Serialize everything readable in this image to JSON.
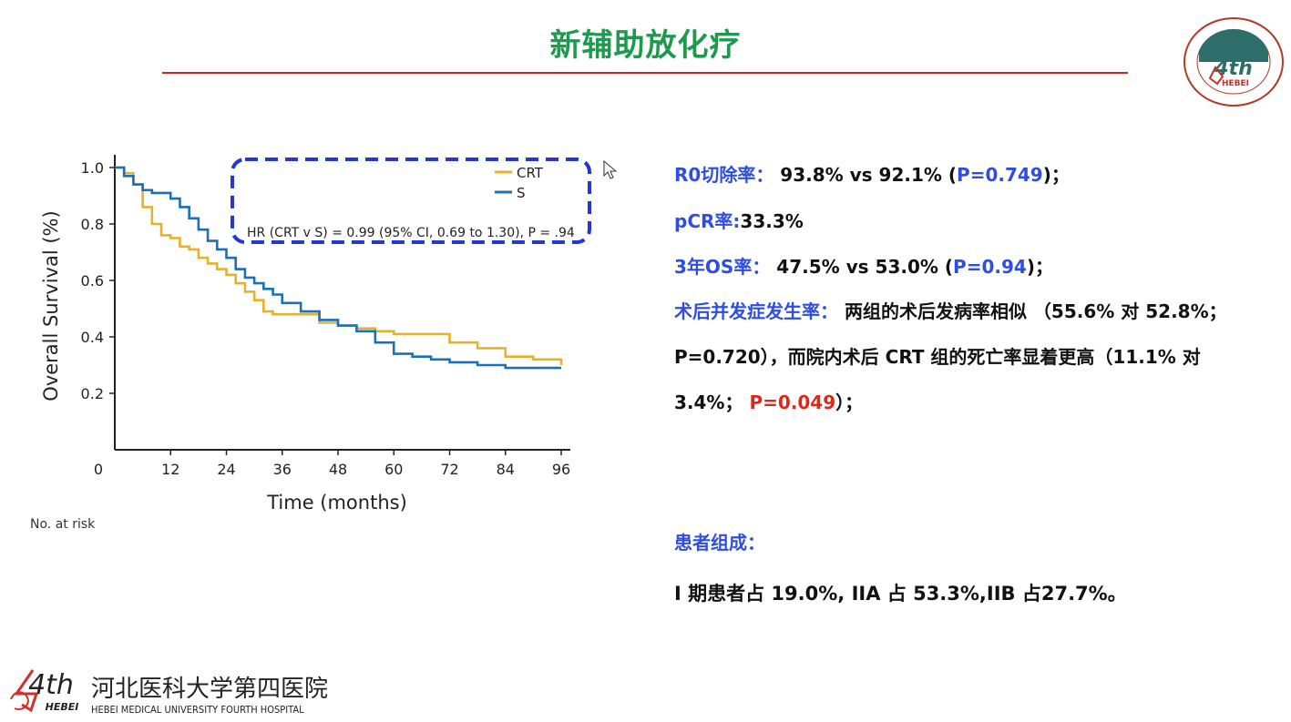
{
  "title": "新辅助放化疗",
  "chart_data": {
    "type": "line",
    "xlabel": "Time (months)",
    "ylabel": "Overall Survival (%)",
    "xlim": [
      0,
      96
    ],
    "ylim": [
      0.0,
      1.0
    ],
    "xticks": [
      "0",
      "12",
      "24",
      "36",
      "48",
      "60",
      "72",
      "84",
      "96"
    ],
    "yticks": [
      "1.0",
      "0.8",
      "0.6",
      "0.4",
      "0.2"
    ],
    "legend_position": "top-right",
    "annotation": "HR (CRT v S) = 0.99 (95% CI, 0.69 to 1.30), P = .94",
    "cut_label": "No. at risk",
    "series": [
      {
        "name": "CRT",
        "color": "#e6b22c",
        "x": [
          0,
          2,
          4,
          6,
          8,
          10,
          12,
          14,
          16,
          18,
          20,
          22,
          24,
          26,
          28,
          30,
          32,
          34,
          36,
          40,
          44,
          48,
          52,
          56,
          60,
          66,
          72,
          78,
          84,
          90,
          96
        ],
        "y": [
          1.0,
          0.98,
          0.94,
          0.86,
          0.8,
          0.76,
          0.75,
          0.72,
          0.71,
          0.68,
          0.66,
          0.64,
          0.62,
          0.59,
          0.56,
          0.53,
          0.49,
          0.48,
          0.48,
          0.48,
          0.45,
          0.44,
          0.43,
          0.42,
          0.41,
          0.41,
          0.38,
          0.36,
          0.33,
          0.32,
          0.3
        ]
      },
      {
        "name": "S",
        "color": "#1d6fb8",
        "x": [
          0,
          2,
          4,
          6,
          8,
          10,
          12,
          14,
          16,
          18,
          20,
          22,
          24,
          26,
          28,
          30,
          32,
          34,
          36,
          40,
          44,
          48,
          52,
          56,
          60,
          64,
          68,
          72,
          78,
          84,
          90,
          96
        ],
        "y": [
          1.0,
          0.97,
          0.94,
          0.92,
          0.91,
          0.91,
          0.89,
          0.86,
          0.82,
          0.78,
          0.74,
          0.71,
          0.68,
          0.64,
          0.61,
          0.59,
          0.57,
          0.55,
          0.52,
          0.49,
          0.46,
          0.44,
          0.42,
          0.38,
          0.34,
          0.33,
          0.32,
          0.31,
          0.3,
          0.29,
          0.29,
          0.29
        ]
      }
    ]
  },
  "stats": {
    "r0": {
      "label": "R0切除率：",
      "value": "93.8% vs 92.1% (",
      "p": "P=0.749",
      "tail": ")；"
    },
    "pcr": {
      "label": "pCR率:",
      "value": "33.3%"
    },
    "os3": {
      "label": "3年OS率：",
      "value": "47.5% vs 53.0% (",
      "p": "P=0.94",
      "tail": ")；"
    },
    "comp": {
      "label": "术后并发症发生率：",
      "line1": "两组的术后发病率相似 （55.6% 对 52.8%；",
      "line2": "P=0.720），而院内术后 CRT 组的死亡率显着更高（11.1% 对",
      "line3_a": "3.4%； ",
      "p": "P=0.049",
      "line3_b": "）；"
    }
  },
  "patients": {
    "heading": "患者组成：",
    "body": "I 期患者占 19.0%, IIA 占 53.3%,IIB 占27.7%。"
  },
  "footer": {
    "logo_text": "4th",
    "logo_sub": "HEBEI",
    "name_cn": "河北医科大学第四医院",
    "name_en": "HEBEI MEDICAL UNIVERSITY FOURTH HOSPITAL"
  },
  "seal": {
    "center_text": "4th",
    "sub_text": "HEBEI"
  }
}
